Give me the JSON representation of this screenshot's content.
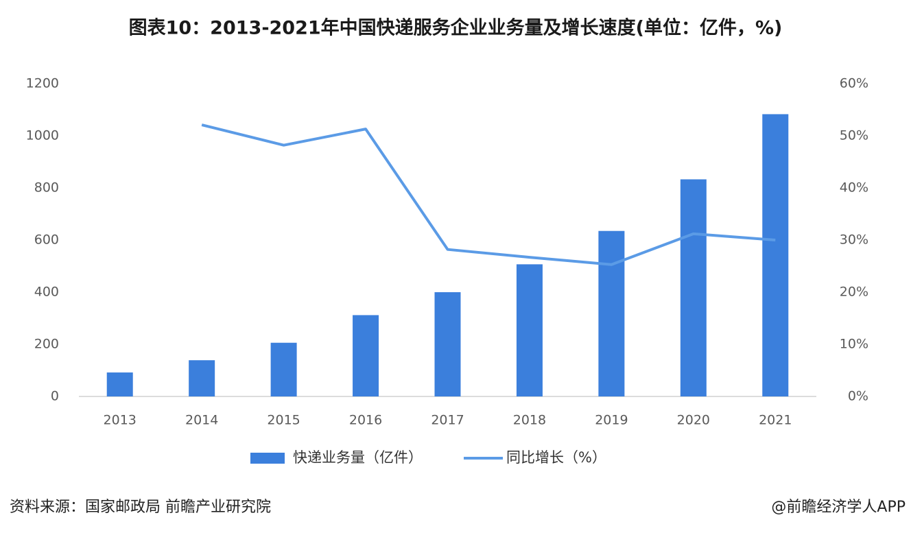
{
  "chart_data": {
    "type": "bar",
    "title": "图表10：2013-2021年中国快递服务企业业务量及增长速度(单位：亿件，%)",
    "categories": [
      "2013",
      "2014",
      "2015",
      "2016",
      "2017",
      "2018",
      "2019",
      "2020",
      "2021"
    ],
    "series": [
      {
        "name": "快递业务量（亿件）",
        "type": "bar",
        "color": "#3b7fdc",
        "values": [
          92,
          139,
          206,
          312,
          400,
          507,
          635,
          833,
          1083
        ]
      },
      {
        "name": "同比增长（%）",
        "type": "line",
        "axis": "y2",
        "color": "#5b9be6",
        "values": [
          null,
          52.1,
          48.2,
          51.3,
          28.2,
          26.7,
          25.3,
          31.2,
          30.0
        ]
      }
    ],
    "ylim": [
      0,
      1200
    ],
    "yticks": [
      0,
      200,
      400,
      600,
      800,
      1000,
      1200
    ],
    "y2lim": [
      0,
      60
    ],
    "y2ticks": [
      {
        "value": 0,
        "label": "0%"
      },
      {
        "value": 10,
        "label": "10%"
      },
      {
        "value": 20,
        "label": "20%"
      },
      {
        "value": 30,
        "label": "30%"
      },
      {
        "value": 40,
        "label": "40%"
      },
      {
        "value": 50,
        "label": "50%"
      },
      {
        "value": 60,
        "label": "60%"
      }
    ],
    "grid": false,
    "legend": "bottom"
  },
  "footer": {
    "source": "资料来源：国家邮政局 前瞻产业研究院",
    "credit": "@前瞻经济学人APP"
  }
}
